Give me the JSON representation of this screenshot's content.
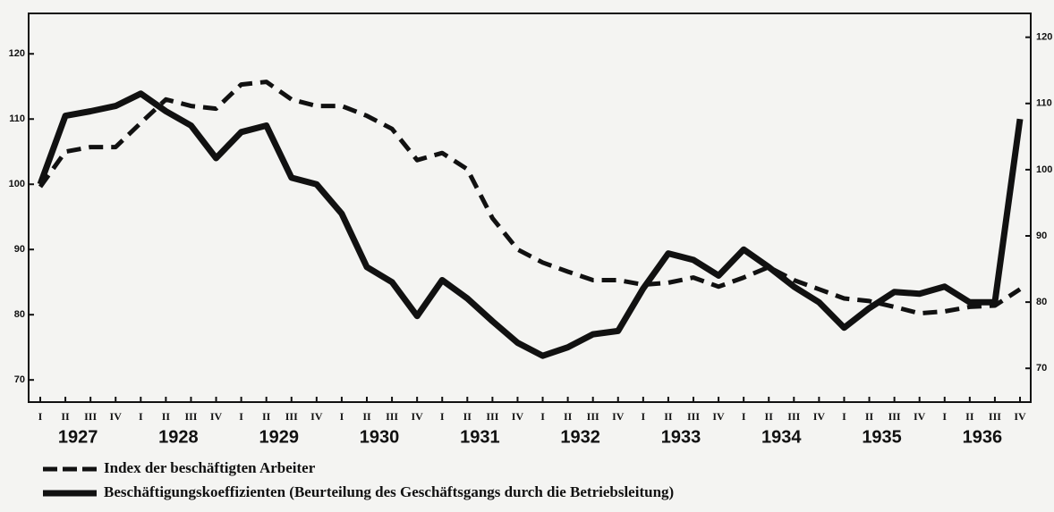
{
  "chart_data": {
    "type": "line",
    "categories": [
      "I",
      "II",
      "III",
      "IV",
      "I",
      "II",
      "III",
      "IV",
      "I",
      "II",
      "III",
      "IV",
      "I",
      "II",
      "III",
      "IV",
      "I",
      "II",
      "III",
      "IV",
      "I",
      "II",
      "III",
      "IV",
      "I",
      "II",
      "III",
      "IV",
      "I",
      "II",
      "III",
      "IV",
      "I",
      "II",
      "III",
      "IV",
      "I",
      "II",
      "III",
      "IV"
    ],
    "years": [
      "1927",
      "1928",
      "1929",
      "1930",
      "1931",
      "1932",
      "1933",
      "1934",
      "1935",
      "1936"
    ],
    "series": [
      {
        "name": "Index der beschäftigten Arbeiter",
        "color": "#111111",
        "dash": true,
        "values": [
          99.6,
          105,
          105.7,
          105.7,
          109.4,
          113,
          112,
          111.6,
          115.3,
          115.7,
          113,
          112,
          112,
          110.5,
          108.5,
          103.7,
          104.8,
          102.3,
          94.8,
          90,
          88,
          86.6,
          85.3,
          85.3,
          84.6,
          84.9,
          85.7,
          84.3,
          85.7,
          87.3,
          85.3,
          83.9,
          82.5,
          82.1,
          81.2,
          80.2,
          80.5,
          81.2,
          81.4,
          83.9
        ]
      },
      {
        "name": "Beschäftigungskoeffizienten (Beurteilung des Geschäftsgangs durch die Betriebsleitung)",
        "color": "#111111",
        "dash": false,
        "values": [
          100,
          110.5,
          111.2,
          112,
          113.9,
          111.2,
          109,
          104,
          108,
          109,
          101,
          100,
          95.5,
          87.3,
          85,
          79.8,
          85.3,
          82.5,
          79,
          75.7,
          73.7,
          75,
          77,
          77.5,
          84,
          89.4,
          88.4,
          86,
          90,
          87.3,
          84.3,
          81.9,
          78,
          81,
          83.5,
          83.2,
          84.3,
          81.9,
          81.9,
          110
        ]
      }
    ],
    "ylim": [
      66.6,
      126.2
    ],
    "yticks": [
      70,
      80,
      90,
      100,
      110,
      120
    ],
    "y2lim": [
      64.9,
      123.6
    ],
    "y2ticks": [
      70,
      80,
      90,
      100,
      110,
      120
    ]
  }
}
